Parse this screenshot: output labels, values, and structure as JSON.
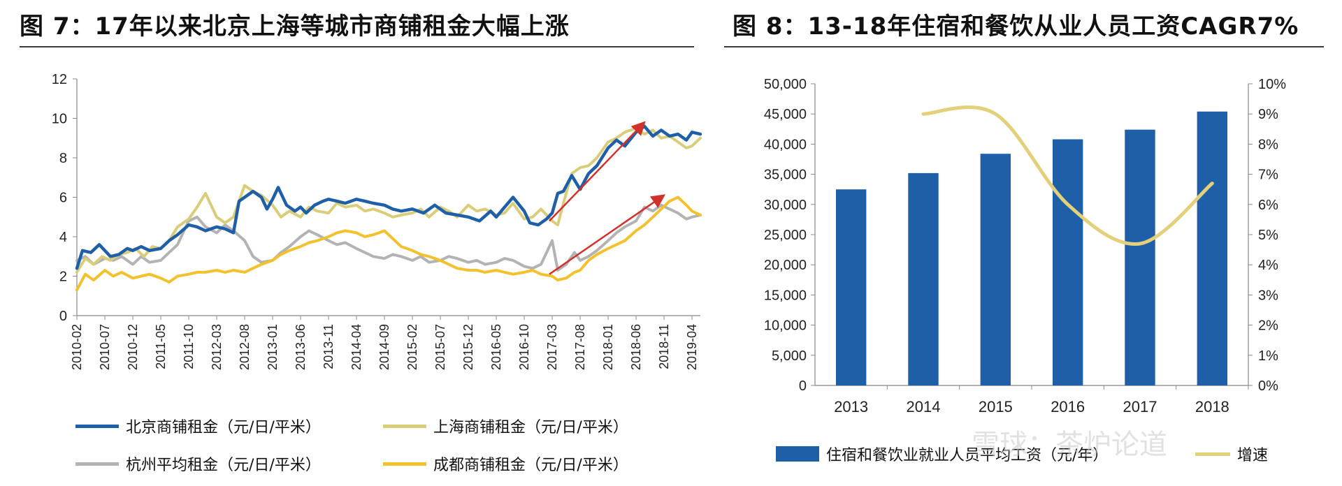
{
  "panels": {
    "left_title": "图 7：17年以来北京上海等城市商铺租金大幅上涨",
    "right_title": "图 8：13-18年住宿和餐饮从业人员工资CAGR7%"
  },
  "watermark": "雪球：茶炉论道",
  "chart_data": [
    {
      "type": "line",
      "title": "图 7：17年以来北京上海等城市商铺租金大幅上涨",
      "ylim": [
        0,
        12
      ],
      "yticks": [
        "0",
        "2",
        "4",
        "6",
        "8",
        "10",
        "12"
      ],
      "xticks": [
        "2010-02",
        "2010-07",
        "2010-12",
        "2011-05",
        "2011-10",
        "2012-03",
        "2012-08",
        "2013-01",
        "2013-06",
        "2013-11",
        "2014-04",
        "2014-09",
        "2015-02",
        "2015-07",
        "2015-12",
        "2016-05",
        "2016-10",
        "2017-03",
        "2017-08",
        "2018-01",
        "2018-06",
        "2018-11",
        "2019-04"
      ],
      "legend": [
        "北京商铺租金（元/日/平米）",
        "上海商铺租金（元/日/平米）",
        "杭州平均租金（元/日/平米）",
        "成都商铺租金（元/日/平米）"
      ],
      "colors": [
        "#1f5fa8",
        "#d9cd7a",
        "#b3b3b3",
        "#f2c12e"
      ],
      "series": [
        {
          "name": "北京商铺租金（元/日/平米）",
          "x": [
            0,
            0.2,
            0.5,
            0.8,
            1,
            1.2,
            1.5,
            1.8,
            2,
            2.3,
            2.6,
            3,
            3.3,
            3.6,
            4,
            4.3,
            4.6,
            5,
            5.3,
            5.6,
            5.8,
            6,
            6.3,
            6.6,
            6.8,
            7,
            7.2,
            7.5,
            7.8,
            8,
            8.2,
            8.5,
            8.8,
            9,
            9.3,
            9.6,
            10,
            10.3,
            10.6,
            11,
            11.3,
            11.6,
            12,
            12.4,
            12.8,
            13.2,
            13.6,
            14,
            14.4,
            14.8,
            15,
            15.3,
            15.6,
            16,
            16.2,
            16.5,
            16.8,
            17,
            17.2,
            17.4,
            17.7,
            18,
            18.3,
            18.6,
            19,
            19.3,
            19.6,
            20,
            20.3,
            20.6,
            20.9,
            21.2,
            21.5,
            21.8,
            22,
            22.3
          ],
          "values": [
            2.4,
            3.3,
            3.2,
            3.6,
            3.3,
            3.0,
            3.1,
            3.4,
            3.3,
            3.5,
            3.3,
            3.4,
            3.8,
            4.1,
            4.6,
            4.5,
            4.3,
            4.5,
            4.4,
            4.2,
            5.8,
            6.0,
            6.3,
            6.0,
            5.4,
            5.9,
            6.5,
            5.6,
            5.3,
            5.5,
            5.2,
            5.6,
            5.8,
            5.9,
            5.8,
            5.7,
            5.9,
            5.8,
            5.7,
            5.6,
            5.4,
            5.3,
            5.4,
            5.2,
            5.6,
            5.2,
            5.1,
            5.0,
            4.8,
            5.3,
            5.0,
            5.5,
            6.0,
            5.3,
            4.7,
            4.6,
            4.9,
            5.2,
            6.2,
            6.3,
            7.1,
            6.4,
            7.2,
            7.6,
            8.5,
            8.9,
            8.6,
            9.3,
            9.6,
            9.1,
            9.4,
            9.1,
            9.2,
            8.9,
            9.3,
            9.2
          ]
        },
        {
          "name": "上海商铺租金（元/日/平米）",
          "x": [
            0,
            0.3,
            0.6,
            0.9,
            1.2,
            1.5,
            1.8,
            2.1,
            2.4,
            2.7,
            3,
            3.3,
            3.6,
            4,
            4.3,
            4.6,
            5,
            5.3,
            5.6,
            6,
            6.3,
            6.6,
            7,
            7.3,
            7.6,
            8,
            8.3,
            8.6,
            9,
            9.3,
            9.6,
            10,
            10.3,
            10.6,
            11,
            11.3,
            11.6,
            12,
            12.3,
            12.6,
            13,
            13.3,
            13.6,
            14,
            14.3,
            14.6,
            15,
            15.3,
            15.6,
            16,
            16.3,
            16.6,
            17,
            17.2,
            17.4,
            17.7,
            18,
            18.3,
            18.6,
            19,
            19.3,
            19.6,
            20,
            20.3,
            20.6,
            20.9,
            21.2,
            21.5,
            21.8,
            22,
            22.3
          ],
          "values": [
            2.2,
            2.9,
            2.6,
            3.0,
            2.8,
            3.1,
            3.2,
            3.4,
            3.0,
            3.5,
            3.4,
            3.8,
            4.5,
            4.9,
            5.5,
            6.2,
            5.0,
            4.7,
            5.0,
            6.6,
            6.3,
            6.1,
            5.6,
            5.0,
            5.3,
            5.0,
            5.5,
            5.3,
            5.2,
            5.7,
            5.5,
            5.6,
            5.3,
            5.4,
            5.2,
            5.0,
            5.1,
            5.2,
            5.4,
            5.0,
            5.5,
            5.3,
            5.0,
            5.6,
            5.3,
            5.4,
            5.1,
            5.2,
            5.7,
            4.9,
            5.0,
            5.4,
            4.8,
            4.6,
            5.7,
            7.2,
            7.5,
            7.6,
            8.0,
            8.8,
            9.0,
            9.3,
            9.5,
            9.2,
            9.4,
            9.0,
            9.1,
            8.8,
            8.5,
            8.6,
            9.0
          ]
        },
        {
          "name": "杭州平均租金（元/日/平米）",
          "x": [
            0,
            0.3,
            0.6,
            1,
            1.3,
            1.6,
            2,
            2.3,
            2.6,
            3,
            3.3,
            3.6,
            4,
            4.3,
            4.6,
            5,
            5.3,
            5.6,
            6,
            6.3,
            6.6,
            7,
            7.3,
            7.6,
            8,
            8.3,
            8.6,
            9,
            9.3,
            9.6,
            10,
            10.3,
            10.6,
            11,
            11.3,
            11.6,
            12,
            12.3,
            12.6,
            13,
            13.3,
            13.6,
            14,
            14.3,
            14.6,
            15,
            15.3,
            15.6,
            16,
            16.3,
            16.6,
            17,
            17.2,
            17.5,
            17.8,
            18,
            18.3,
            18.6,
            19,
            19.3,
            19.6,
            20,
            20.3,
            20.6,
            20.9,
            21.2,
            21.5,
            21.8,
            22,
            22.3
          ],
          "values": [
            2.8,
            3.0,
            2.6,
            2.9,
            2.8,
            3.0,
            2.6,
            3.0,
            2.7,
            2.8,
            3.2,
            3.6,
            4.8,
            5.0,
            4.5,
            4.2,
            4.6,
            4.3,
            3.8,
            3.0,
            2.7,
            2.8,
            3.2,
            3.5,
            4.0,
            4.3,
            4.1,
            3.8,
            3.6,
            3.7,
            3.4,
            3.2,
            3.0,
            2.9,
            3.1,
            3.0,
            2.8,
            3.0,
            2.7,
            2.8,
            3.0,
            2.9,
            2.7,
            2.8,
            2.6,
            2.7,
            2.9,
            2.8,
            2.5,
            2.4,
            2.6,
            3.8,
            2.3,
            2.6,
            3.2,
            2.8,
            3.0,
            3.3,
            3.8,
            4.2,
            4.5,
            4.8,
            5.5,
            5.3,
            5.6,
            5.4,
            5.2,
            4.9,
            5.0,
            5.1
          ]
        },
        {
          "name": "成都商铺租金（元/日/平米）",
          "x": [
            0,
            0.3,
            0.6,
            1,
            1.3,
            1.6,
            2,
            2.3,
            2.6,
            3,
            3.3,
            3.6,
            4,
            4.3,
            4.6,
            5,
            5.3,
            5.6,
            6,
            6.3,
            6.6,
            7,
            7.3,
            7.6,
            8,
            8.3,
            8.6,
            9,
            9.3,
            9.6,
            10,
            10.3,
            10.6,
            11,
            11.3,
            11.6,
            12,
            12.3,
            12.6,
            13,
            13.3,
            13.6,
            14,
            14.3,
            14.6,
            15,
            15.3,
            15.6,
            16,
            16.3,
            16.6,
            17,
            17.2,
            17.5,
            17.8,
            18,
            18.3,
            18.6,
            19,
            19.3,
            19.6,
            20,
            20.3,
            20.6,
            20.9,
            21.2,
            21.5,
            21.8,
            22,
            22.3
          ],
          "values": [
            1.3,
            2.1,
            1.8,
            2.3,
            2.0,
            2.2,
            1.9,
            2.0,
            2.1,
            1.9,
            1.7,
            2.0,
            2.1,
            2.2,
            2.2,
            2.3,
            2.2,
            2.3,
            2.2,
            2.4,
            2.6,
            2.8,
            3.1,
            3.3,
            3.5,
            3.7,
            3.8,
            4.0,
            4.2,
            4.3,
            4.2,
            4.0,
            4.1,
            4.3,
            3.9,
            3.5,
            3.3,
            3.1,
            3.0,
            2.8,
            2.6,
            2.4,
            2.3,
            2.3,
            2.2,
            2.3,
            2.2,
            2.1,
            2.2,
            2.3,
            2.1,
            2.0,
            1.8,
            1.9,
            2.2,
            2.3,
            2.8,
            3.1,
            3.4,
            3.6,
            3.8,
            4.3,
            4.6,
            5.0,
            5.4,
            5.8,
            6.0,
            5.6,
            5.3,
            5.1
          ]
        }
      ],
      "annotations": [
        {
          "type": "arrow",
          "from": [
            16.9,
            4.8
          ],
          "to": [
            20.3,
            9.8
          ],
          "color": "#d0312d"
        },
        {
          "type": "arrow",
          "from": [
            16.9,
            2.1
          ],
          "to": [
            21.0,
            6.1
          ],
          "color": "#d0312d"
        }
      ]
    },
    {
      "type": "bar",
      "title": "图 8：13-18年住宿和餐饮从业人员工资CAGR7%",
      "categories": [
        "2013",
        "2014",
        "2015",
        "2016",
        "2017",
        "2018"
      ],
      "ylim": [
        0,
        50000
      ],
      "y2lim": [
        0,
        10
      ],
      "yticks": [
        "0",
        "5,000",
        "10,000",
        "15,000",
        "20,000",
        "25,000",
        "30,000",
        "35,000",
        "40,000",
        "45,000",
        "50,000"
      ],
      "y2ticks": [
        "0%",
        "1%",
        "2%",
        "3%",
        "4%",
        "5%",
        "6%",
        "7%",
        "8%",
        "9%",
        "10%"
      ],
      "legend": [
        "住宿和餐饮业就业人员平均工资（元/年）",
        "增速"
      ],
      "colors": [
        "#1f5fa8",
        "#e3d07a"
      ],
      "series": [
        {
          "name": "住宿和餐饮业就业人员平均工资（元/年）",
          "type": "bar",
          "values": [
            32500,
            35200,
            38400,
            40800,
            42400,
            45400
          ]
        },
        {
          "name": "增速",
          "type": "line",
          "axis": "right",
          "values": [
            null,
            9.0,
            9.0,
            6.0,
            4.7,
            6.7
          ]
        }
      ]
    }
  ]
}
